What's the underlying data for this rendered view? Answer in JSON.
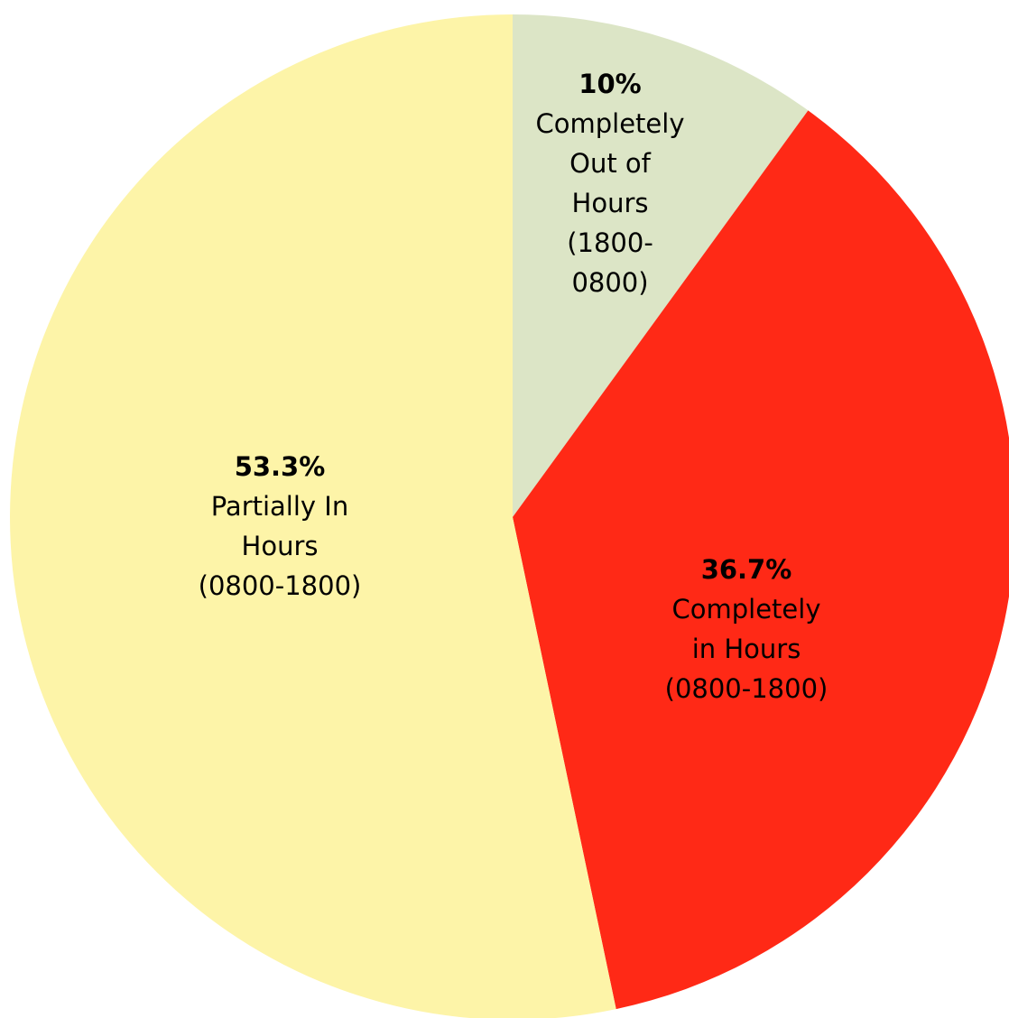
{
  "chart_data": {
    "type": "pie",
    "slices": [
      {
        "value": 10,
        "pct_label": "10%",
        "label_lines": [
          "Completely",
          "Out of",
          "Hours",
          "(1800-",
          "0800)"
        ],
        "color": "#DCE5C6"
      },
      {
        "value": 36.7,
        "pct_label": "36.7%",
        "label_lines": [
          "Completely",
          "in Hours",
          "(0800-1800)"
        ],
        "color": "#FF2916"
      },
      {
        "value": 53.3,
        "pct_label": "53.3%",
        "label_lines": [
          "Partially In",
          "Hours",
          "(0800-1800)"
        ],
        "color": "#FDF4A8"
      }
    ],
    "start_angle": "12 o'clock",
    "direction": "clockwise",
    "legend": "none",
    "labels_inside": true
  }
}
